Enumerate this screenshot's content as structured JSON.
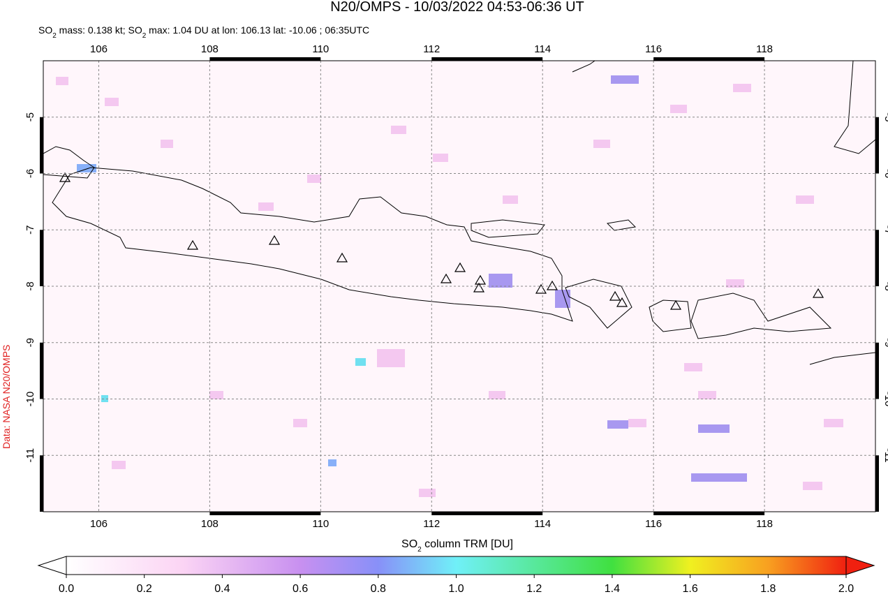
{
  "title": "N20/OMPS - 10/03/2022 04:53-06:36 UT",
  "subtitle_parts": [
    "SO",
    "2",
    " mass: 0.138 kt; SO",
    "2",
    " max: 1.04 DU at lon: 106.13 lat: -10.06 ; 06:35UTC"
  ],
  "credit": "Data: NASA N20/OMPS",
  "map": {
    "xlim": [
      105,
      120
    ],
    "ylim": [
      -12,
      -4
    ],
    "xticks": [
      106,
      108,
      110,
      112,
      114,
      116,
      118
    ],
    "yticks": [
      -5,
      -6,
      -7,
      -8,
      -9,
      -10,
      -11
    ]
  },
  "colorbar": {
    "label_parts": [
      "SO",
      "2",
      " column TRM [DU]"
    ],
    "lim": [
      0,
      2
    ],
    "ticks": [
      {
        "value": 0,
        "label": "0.0"
      },
      {
        "value": 0.2,
        "label": "0.2"
      },
      {
        "value": 0.4,
        "label": "0.4"
      },
      {
        "value": 0.6,
        "label": "0.6"
      },
      {
        "value": 0.8,
        "label": "0.8"
      },
      {
        "value": 1,
        "label": "1.0"
      },
      {
        "value": 1.2,
        "label": "1.2"
      },
      {
        "value": 1.4,
        "label": "1.4"
      },
      {
        "value": 1.6,
        "label": "1.6"
      },
      {
        "value": 1.8,
        "label": "1.8"
      },
      {
        "value": 2,
        "label": "2.0"
      }
    ]
  }
}
